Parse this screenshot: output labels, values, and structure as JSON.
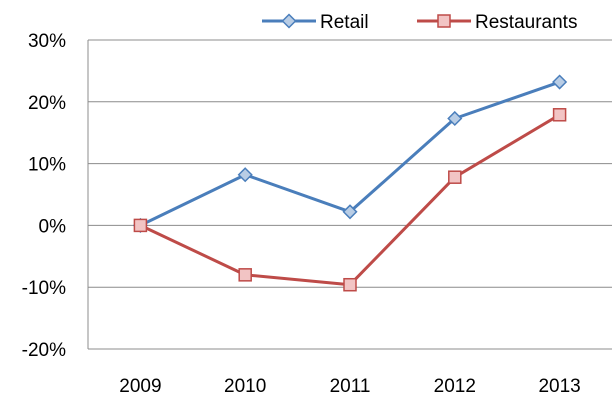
{
  "chart_data": {
    "type": "line",
    "categories": [
      "2009",
      "2010",
      "2011",
      "2012",
      "2013"
    ],
    "series": [
      {
        "name": "Retail",
        "values": [
          0,
          8.2,
          2.2,
          17.3,
          23.2
        ],
        "color": "#4A7EBB",
        "marker": "diamond",
        "marker_fill": "#B9CDE5"
      },
      {
        "name": "Restaurants",
        "values": [
          0,
          -8.0,
          -9.6,
          7.8,
          17.9
        ],
        "color": "#BE4B48",
        "marker": "square",
        "marker_fill": "#F2C4C4"
      }
    ],
    "y_tick_labels": [
      "30%",
      "20%",
      "10%",
      "0%",
      "-10%",
      "-20%"
    ],
    "ylim": [
      -20,
      30
    ],
    "y_tick_step": 10,
    "grid": true,
    "legend_position": "top-right",
    "title": "",
    "xlabel": "",
    "ylabel": ""
  }
}
